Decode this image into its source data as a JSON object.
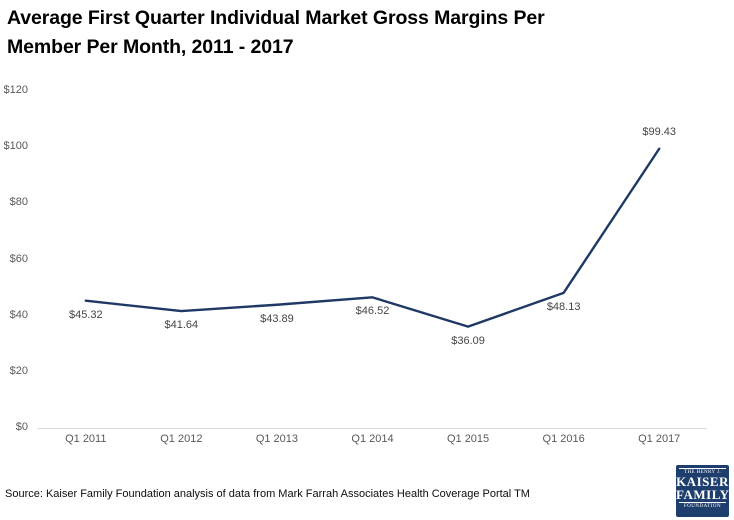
{
  "title_lines": [
    "Average First Quarter Individual Market Gross Margins Per",
    "Member Per Month, 2011 - 2017"
  ],
  "source": "Source: Kaiser Family Foundation analysis of data from Mark Farrah Associates Health Coverage Portal TM",
  "logo": {
    "top_text": "THE HENRY J.",
    "name_line1": "KAISER",
    "name_line2": "FAMILY",
    "bottom_text": "FOUNDATION",
    "bg_color": "#1e3e6e"
  },
  "chart_data": {
    "type": "line",
    "title": "Average First Quarter Individual Market Gross Margins Per Member Per Month, 2011 - 2017",
    "categories": [
      "Q1 2011",
      "Q1 2012",
      "Q1 2013",
      "Q1 2014",
      "Q1 2015",
      "Q1 2016",
      "Q1 2017"
    ],
    "values": [
      45.32,
      41.64,
      43.89,
      46.52,
      36.09,
      48.13,
      99.43
    ],
    "point_labels": [
      "$45.32",
      "$41.64",
      "$43.89",
      "$46.52",
      "$36.09",
      "$48.13",
      "$99.43"
    ],
    "label_side": [
      "below",
      "below",
      "below",
      "below",
      "below",
      "below",
      "above"
    ],
    "ylim": [
      0,
      120
    ],
    "y_tick_values": [
      0,
      20,
      40,
      60,
      80,
      100,
      120
    ],
    "y_tick_labels": [
      "$0",
      "$20",
      "$40",
      "$60",
      "$80",
      "$100",
      "$120"
    ],
    "xlabel": "",
    "ylabel": "",
    "grid": false,
    "legend": "none",
    "line_color": "#1f3864",
    "axis_line_color": "#d9d9d9",
    "tick_text_color": "#595959",
    "data_label_color": "#454545"
  }
}
